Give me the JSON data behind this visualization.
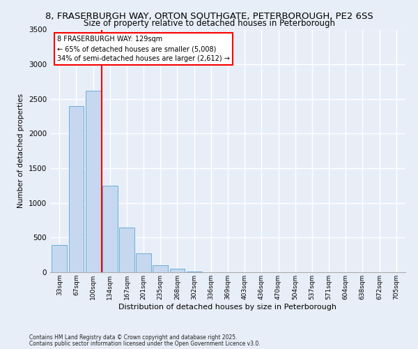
{
  "title1": "8, FRASERBURGH WAY, ORTON SOUTHGATE, PETERBOROUGH, PE2 6SS",
  "title2": "Size of property relative to detached houses in Peterborough",
  "xlabel": "Distribution of detached houses by size in Peterborough",
  "ylabel": "Number of detached properties",
  "bar_labels": [
    "33sqm",
    "67sqm",
    "100sqm",
    "134sqm",
    "167sqm",
    "201sqm",
    "235sqm",
    "268sqm",
    "302sqm",
    "336sqm",
    "369sqm",
    "403sqm",
    "436sqm",
    "470sqm",
    "504sqm",
    "537sqm",
    "571sqm",
    "604sqm",
    "638sqm",
    "672sqm",
    "705sqm"
  ],
  "bar_values": [
    390,
    2400,
    2620,
    1250,
    640,
    270,
    100,
    50,
    15,
    5,
    2,
    1,
    0,
    0,
    0,
    0,
    0,
    0,
    0,
    0,
    0
  ],
  "bar_color": "#c5d8f0",
  "bar_edge_color": "#6aaed6",
  "vline_color": "red",
  "ylim": [
    0,
    3500
  ],
  "yticks": [
    0,
    500,
    1000,
    1500,
    2000,
    2500,
    3000,
    3500
  ],
  "annotation_title": "8 FRASERBURGH WAY: 129sqm",
  "annotation_line1": "← 65% of detached houses are smaller (5,008)",
  "annotation_line2": "34% of semi-detached houses are larger (2,612) →",
  "annotation_box_color": "white",
  "annotation_box_edge": "red",
  "bg_color": "#e8eef8",
  "plot_bg_color": "#e8eef8",
  "grid_color": "white",
  "footnote1": "Contains HM Land Registry data © Crown copyright and database right 2025.",
  "footnote2": "Contains public sector information licensed under the Open Government Licence v3.0.",
  "title1_fontsize": 9.5,
  "title2_fontsize": 8.5
}
